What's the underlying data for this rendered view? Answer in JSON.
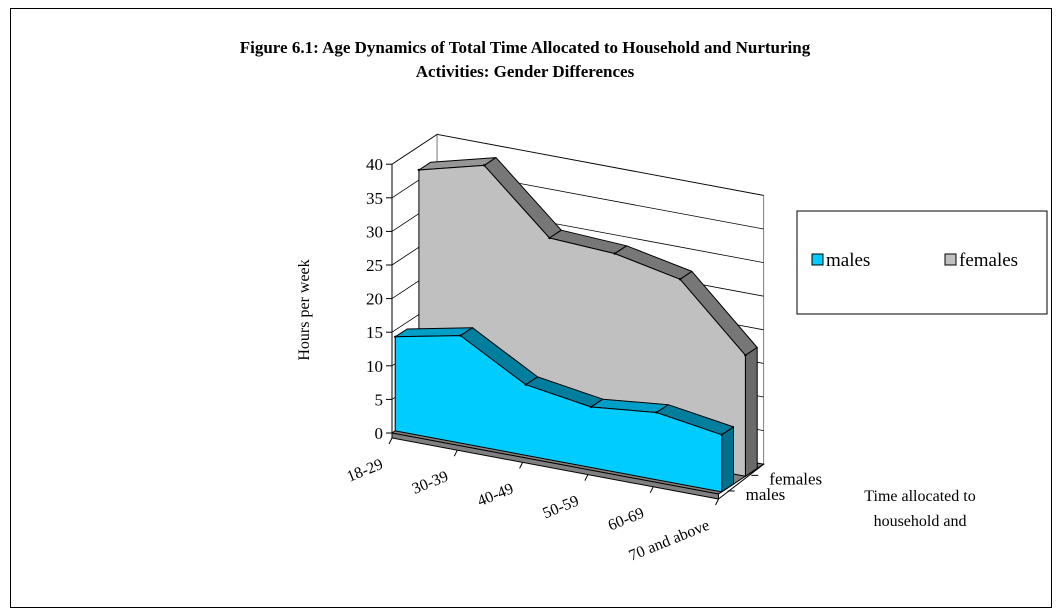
{
  "chart_data": {
    "type": "area",
    "title_lines": [
      "Figure 6.1: Age Dynamics of Total Time Allocated to Household and Nurturing",
      "Activities: Gender Differences"
    ],
    "categories": [
      "18-29",
      "30-39",
      "40-49",
      "50-59",
      "60-69",
      "70 and above"
    ],
    "series": [
      {
        "name": "males",
        "values": [
          14,
          16,
          10.5,
          9,
          10,
          8.5
        ],
        "color": "#00CCFF"
      },
      {
        "name": "females",
        "values": [
          36.5,
          39,
          30,
          29.5,
          27.5,
          18
        ],
        "color": "#C0C0C0"
      }
    ],
    "depth_labels": [
      "females",
      "males"
    ],
    "ylabel": "Hours per week",
    "yticks": [
      0,
      5,
      10,
      15,
      20,
      25,
      30,
      35,
      40
    ],
    "ylim": [
      0,
      40
    ],
    "zaxis_label_lines": [
      "Time allocated to",
      "household and"
    ],
    "legend_position": "right",
    "grid": true
  }
}
